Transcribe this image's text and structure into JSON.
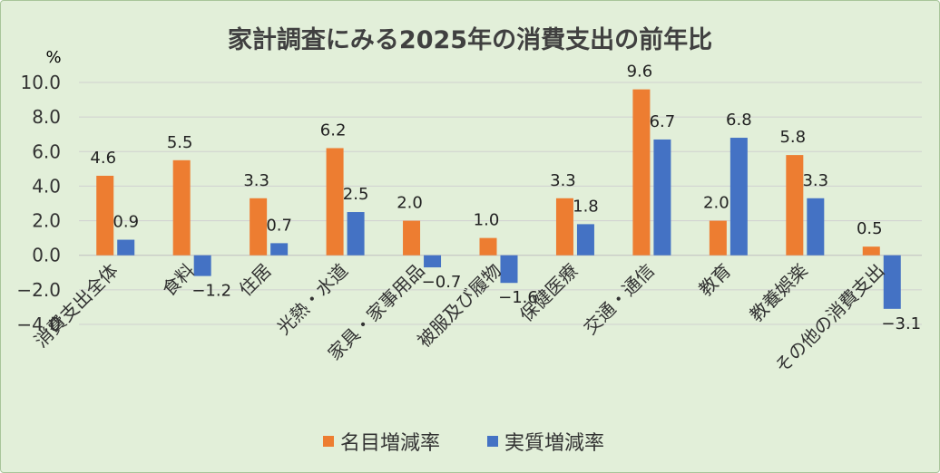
{
  "chart_data": {
    "type": "bar",
    "title": "家計調査にみる2025年の消費支出の前年比",
    "unit_label": "%",
    "ylim": [
      -4.0,
      10.0
    ],
    "yticks": [
      "10.0",
      "8.0",
      "6.0",
      "4.0",
      "2.0",
      "0.0",
      "−2.0",
      "−4.0"
    ],
    "ytick_values": [
      10,
      8,
      6,
      4,
      2,
      0,
      -2,
      -4
    ],
    "categories": [
      "消費支出全体",
      "食料",
      "住居",
      "光熱・水道",
      "家具・家事用品",
      "被服及び履物",
      "保健医療",
      "交通・通信",
      "教育",
      "教養娯楽",
      "その他の消費支出"
    ],
    "series": [
      {
        "name": "名目増減率",
        "color": "#ed7d31",
        "values": [
          4.6,
          5.5,
          3.3,
          6.2,
          2.0,
          1.0,
          3.3,
          9.6,
          2.0,
          5.8,
          0.5
        ],
        "labels": [
          "4.6",
          "5.5",
          "3.3",
          "6.2",
          "2.0",
          "1.0",
          "3.3",
          "9.6",
          "2.0",
          "5.8",
          "0.5"
        ]
      },
      {
        "name": "実質増減率",
        "color": "#4472c4",
        "values": [
          0.9,
          -1.2,
          0.7,
          2.5,
          -0.7,
          -1.6,
          1.8,
          6.7,
          6.8,
          3.3,
          -3.1
        ],
        "labels": [
          "0.9",
          "−1.2",
          "0.7",
          "2.5",
          "−0.7",
          "−1.6",
          "1.8",
          "6.7",
          "6.8",
          "3.3",
          "−3.1"
        ]
      }
    ],
    "grid": true,
    "legend_position": "bottom"
  }
}
